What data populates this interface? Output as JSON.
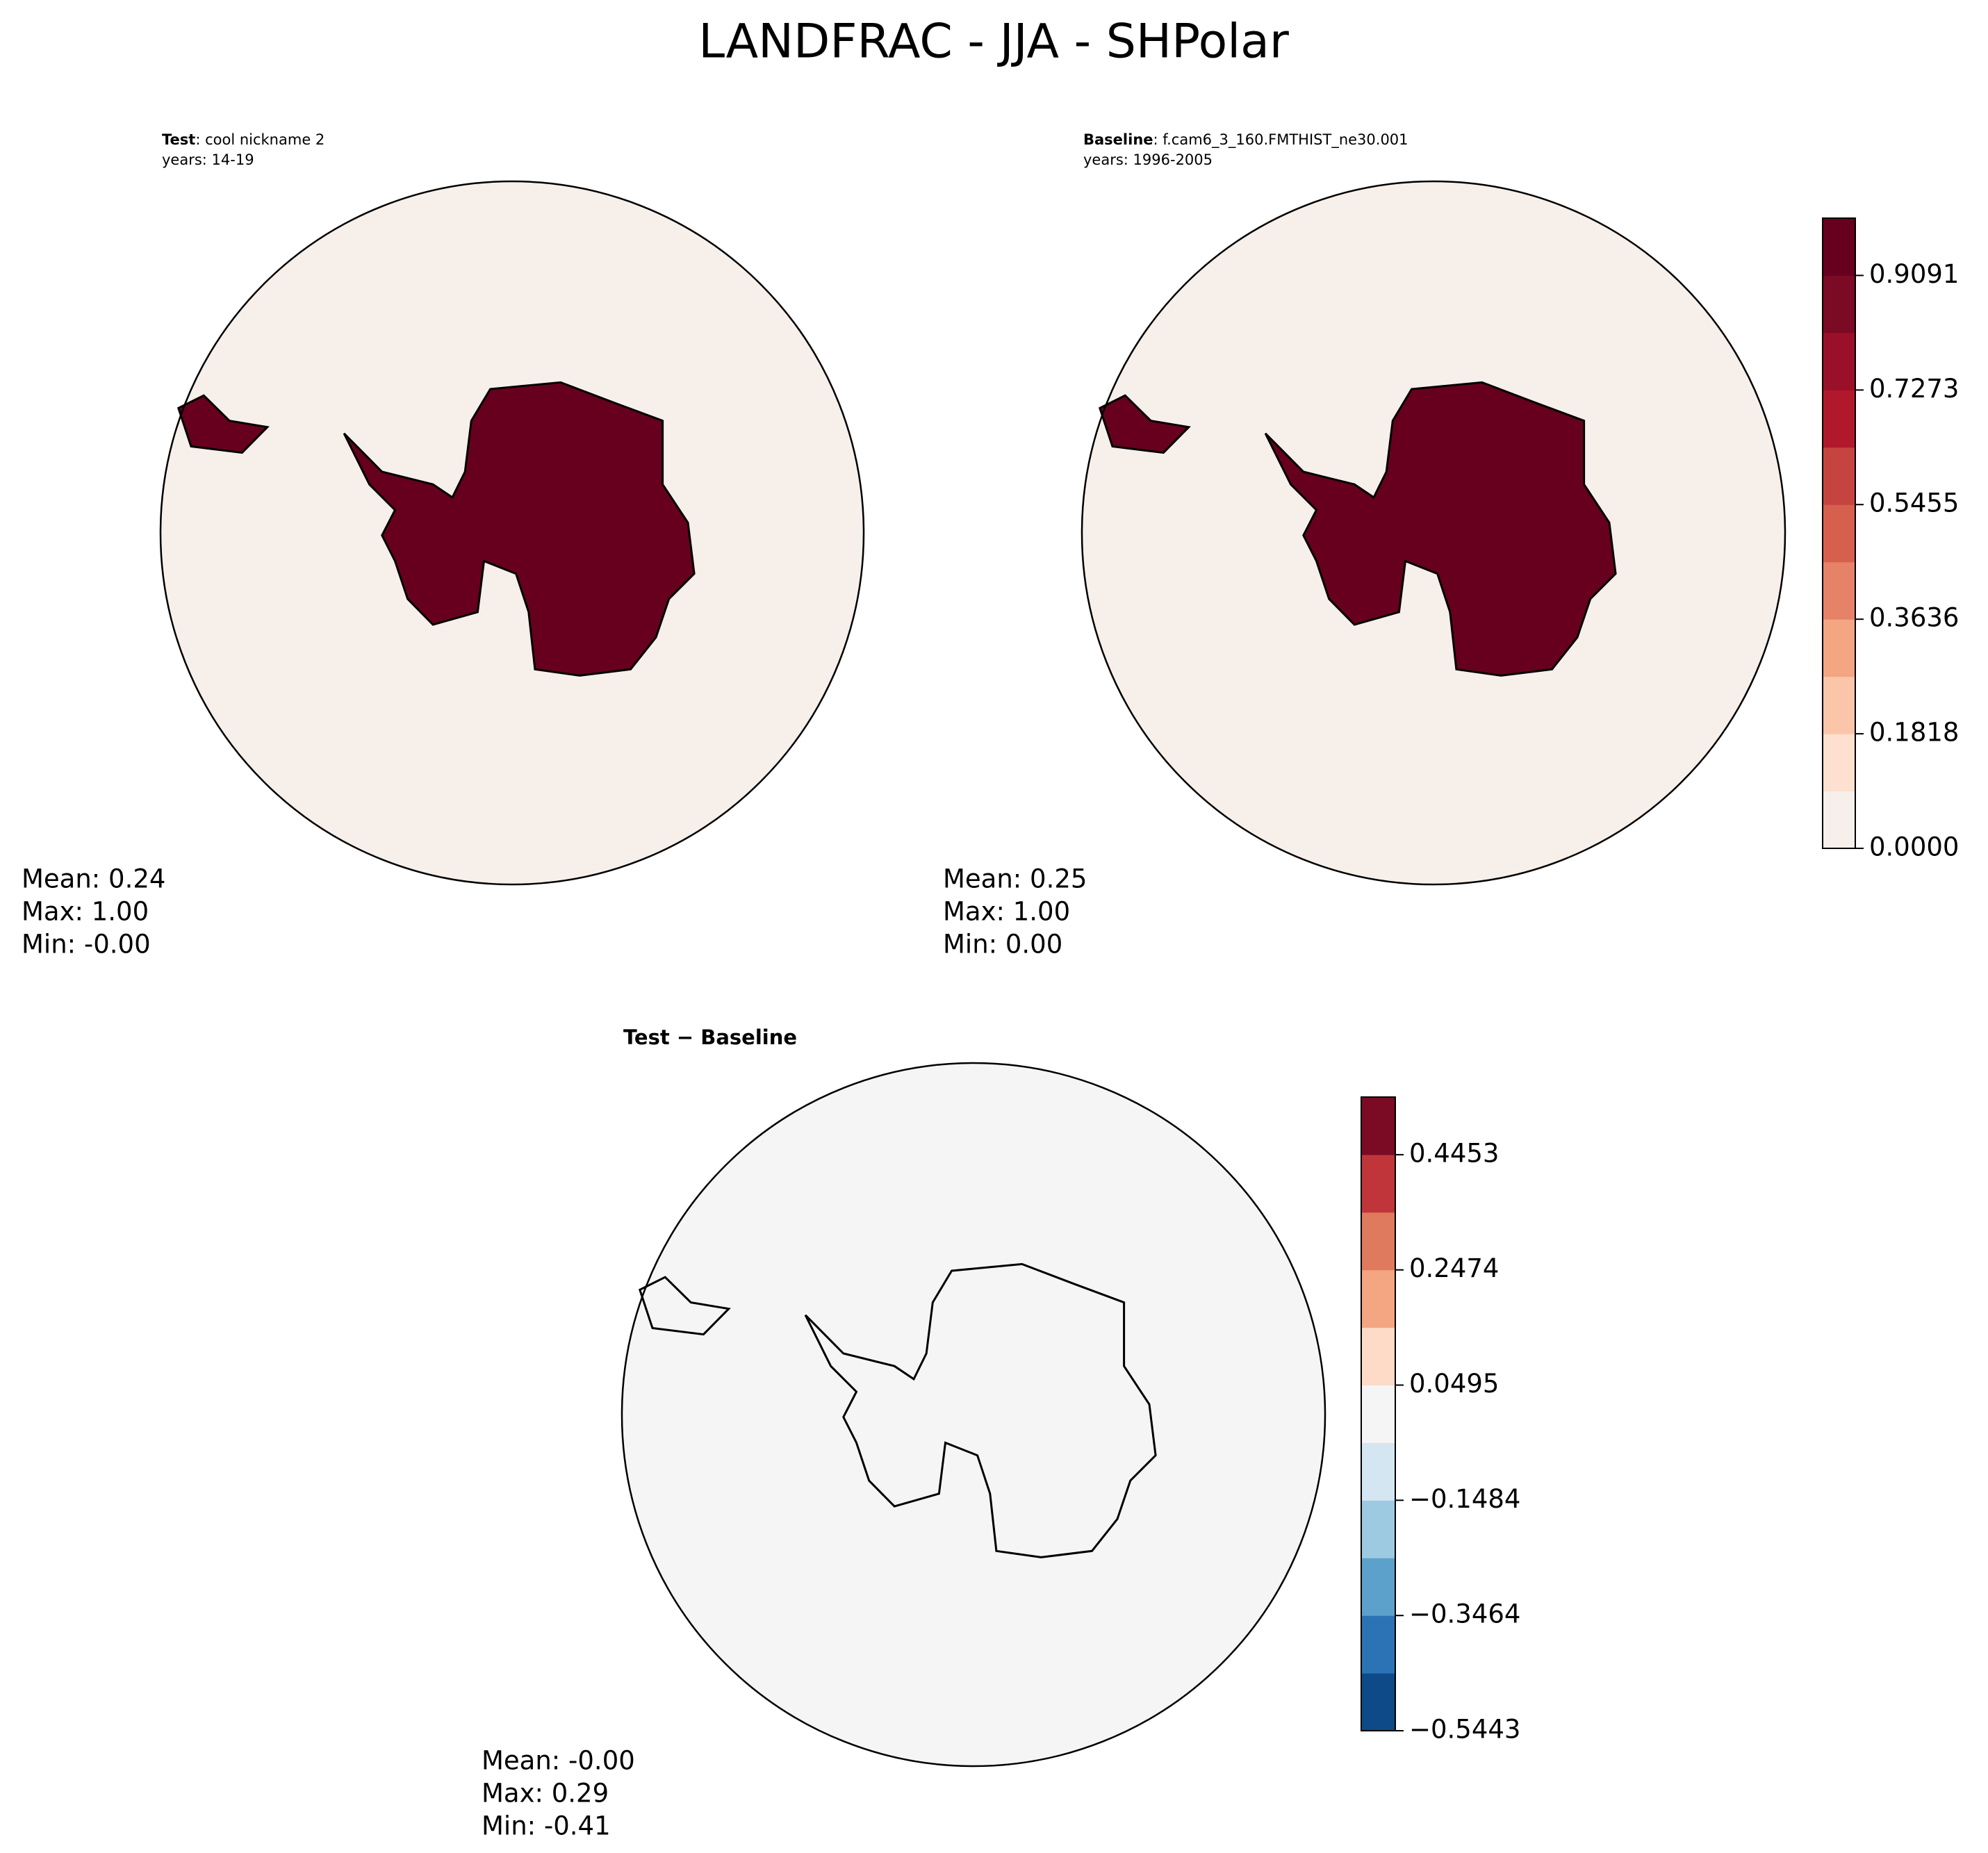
{
  "title": "LANDFRAC - JJA - SHPolar",
  "panels": [
    {
      "label": "Test",
      "name": ": cool nickname 2",
      "years": "years: 14-19",
      "stats": [
        "Mean:  0.24",
        "Max:  1.00",
        "Min: -0.00"
      ]
    },
    {
      "label": "Baseline",
      "name": ": f.cam6_3_160.FMTHIST_ne30.001",
      "years": "years: 1996-2005",
      "stats": [
        "Mean:  0.25",
        "Max:  1.00",
        "Min:  0.00"
      ]
    },
    {
      "label": "Test − Baseline",
      "stats": [
        "Mean: -0.00",
        "Max:  0.29",
        "Min: -0.41"
      ]
    }
  ],
  "colorbars": [
    {
      "ylim": [
        0,
        1.0
      ],
      "yticks": [
        {
          "value": 0,
          "label": "0.0000"
        },
        0.1818,
        0.3636,
        0.5455,
        0.7273,
        0.9091
      ],
      "colors": [
        "#f6efea",
        "#fde0d0",
        "#fbc5aa",
        "#f4a582",
        "#e58267",
        "#d6604d",
        "#c64440",
        "#b2182b",
        "#9b1029",
        "#7b0a24",
        "#67001f"
      ]
    },
    {
      "ylim": [
        -0.5443,
        0.5443
      ],
      "yticks": [
        {
          "value": -0.5443,
          "label": "−0.5443"
        },
        {
          "value": -0.3464,
          "label": "−0.3464"
        },
        {
          "value": -0.1484,
          "label": "−0.1484"
        },
        0.0495,
        0.2474,
        0.4453
      ],
      "colors": [
        "#0d4a87",
        "#2b73b5",
        "#5ca1cc",
        "#9ecae1",
        "#d4e6f1",
        "#f5f5f5",
        "#fddbc7",
        "#f4a582",
        "#e07a5f",
        "#c0353a",
        "#7b0a24"
      ]
    }
  ]
}
